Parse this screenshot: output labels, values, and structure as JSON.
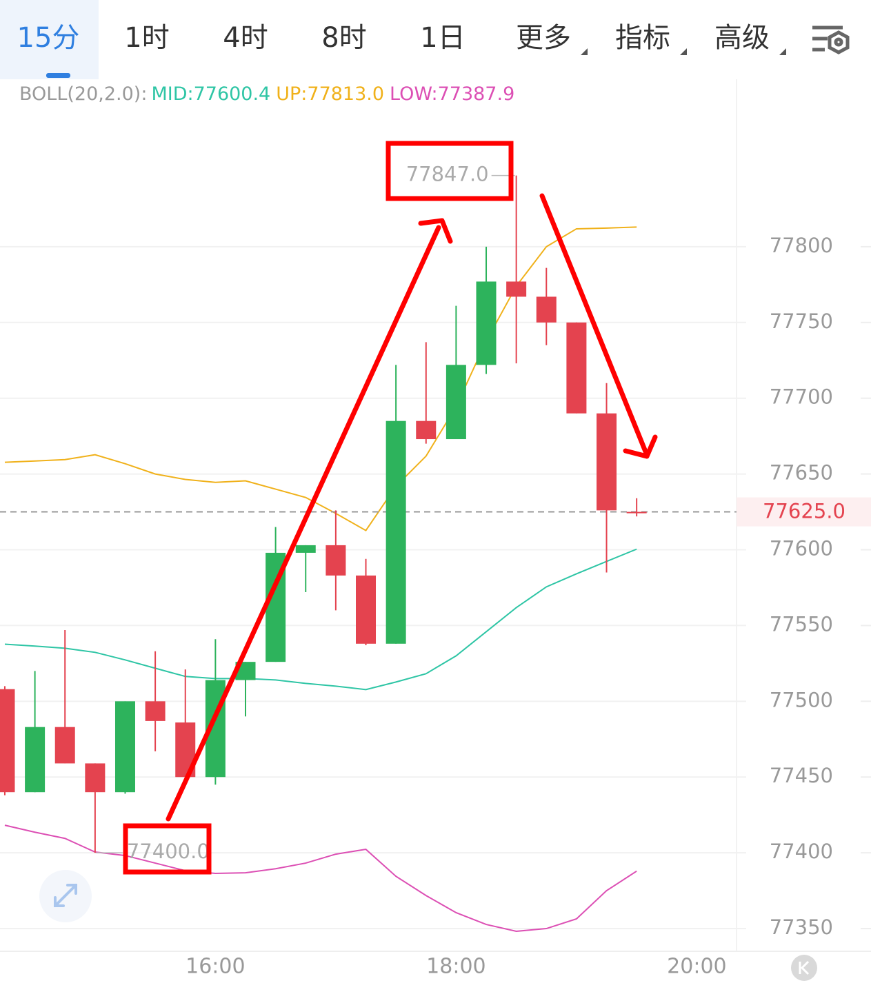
{
  "tabs": [
    "15分",
    "1时",
    "4时",
    "8时",
    "1日",
    "更多",
    "指标",
    "高级"
  ],
  "indicator": "BOLL(20,2.0):",
  "chart_data": {
    "type": "candlestick",
    "x": [
      14.25,
      14.5,
      14.75,
      15.0,
      15.25,
      15.5,
      15.75,
      16.0,
      16.25,
      16.5,
      16.75,
      17.0,
      17.25,
      17.5,
      17.75,
      18.0,
      18.25,
      18.5,
      18.75,
      19.0,
      19.25,
      19.5
    ],
    "open": [
      77508,
      77440,
      77483,
      77459,
      77440,
      77500,
      77486,
      77450,
      77514,
      77526,
      77598,
      77603,
      77583,
      77538,
      77685,
      77673,
      77722,
      77777,
      77767,
      77750,
      77690,
      77625
    ],
    "high": [
      77510,
      77520,
      77547,
      77459,
      77500,
      77533,
      77521,
      77541,
      77526,
      77615,
      77603,
      77626,
      77594,
      77722,
      77737,
      77761,
      77800,
      77847,
      77786,
      77750,
      77710,
      77634
    ],
    "low": [
      77438,
      77440,
      77459,
      77400,
      77439,
      77467,
      77450,
      77445,
      77490,
      77526,
      77572,
      77560,
      77537,
      77538,
      77670,
      77673,
      77716,
      77723,
      77735,
      77690,
      77585,
      77622
    ],
    "close": [
      77440,
      77483,
      77459,
      77440,
      77500,
      77487,
      77450,
      77514,
      77526,
      77598,
      77603,
      77583,
      77538,
      77685,
      77673,
      77722,
      77777,
      77767,
      77750,
      77690,
      77626,
      77625
    ],
    "up_color": "#2db35c",
    "down_color": "#e4434f",
    "series": [
      {
        "label": "MID:77600.4",
        "color": "#2ec5a5",
        "values": [
          77537.7,
          77536.4,
          77535,
          77532.3,
          77527.3,
          77521.8,
          77516.4,
          77515,
          77515,
          77514.1,
          77511.8,
          77510,
          77507.7,
          77512.7,
          77518.2,
          77530,
          77545.9,
          77561.8,
          77575.5,
          77584.1,
          77592.3,
          77600.4
        ]
      },
      {
        "label": "UP:77813.0",
        "color": "#f0b11a",
        "values": [
          77657.7,
          77658.6,
          77659.5,
          77662.7,
          77656.8,
          77650,
          77646.4,
          77644.5,
          77645.5,
          77640,
          77634.5,
          77624,
          77612.7,
          77641.9,
          77661.8,
          77694.5,
          77737.7,
          77774,
          77800,
          77811.8,
          77812.3,
          77813.0
        ]
      },
      {
        "label": "LOW:77387.9",
        "color": "#dc4fb4",
        "values": [
          77418.2,
          77413.6,
          77409.5,
          77400.5,
          77398.2,
          77393.2,
          77388.2,
          77386.4,
          77386.8,
          77389.5,
          77393.2,
          77399.1,
          77402.3,
          77384.5,
          77371.8,
          77360.5,
          77352.7,
          77348.2,
          77350,
          77356.4,
          77375,
          77387.9
        ]
      }
    ],
    "high_marker": {
      "value": 77847,
      "label": "77847.0"
    },
    "low_marker": {
      "value": 77400,
      "label": "77400.0"
    },
    "last_price": {
      "value": 77625,
      "label": "77625.0"
    },
    "xlim": [
      14.21,
      20.33
    ],
    "xticks": [
      {
        "value": 16,
        "label": "16:00"
      },
      {
        "value": 18,
        "label": "18:00"
      },
      {
        "value": 20,
        "label": "20:00"
      }
    ],
    "ylim": [
      77335,
      77910.5
    ],
    "yticks": [
      77350,
      77400,
      77450,
      77500,
      77550,
      77600,
      77650,
      77700,
      77750,
      77800
    ],
    "grid": true
  }
}
